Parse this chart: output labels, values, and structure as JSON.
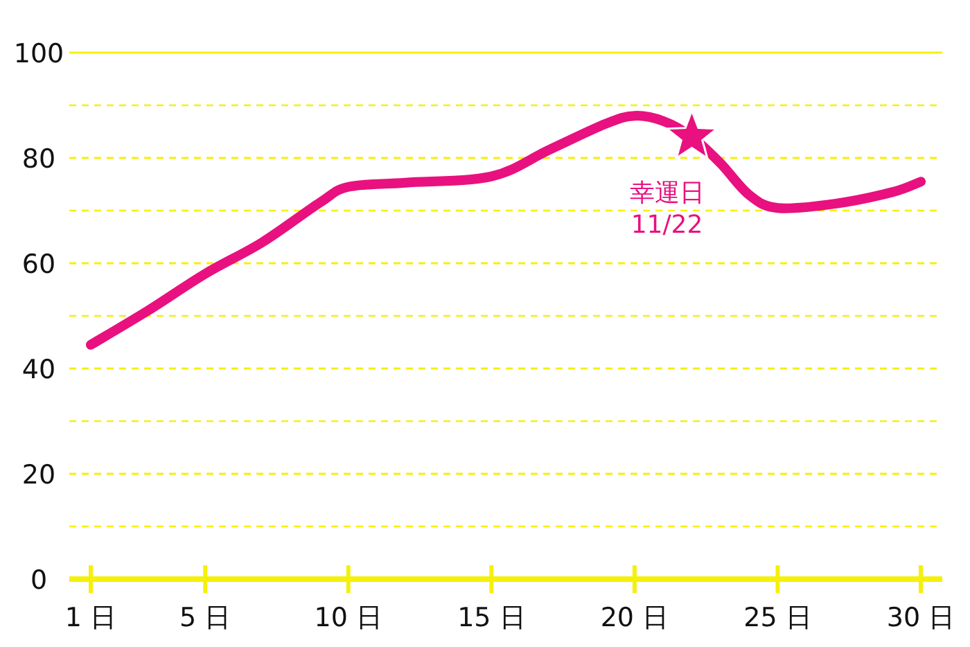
{
  "chart_data": {
    "type": "line",
    "x": [
      1,
      3,
      5,
      7,
      9,
      10,
      12,
      15,
      17,
      19,
      20,
      21,
      22,
      23,
      24,
      25,
      27,
      29,
      30
    ],
    "series": [
      {
        "color": "#e8117f",
        "values": [
          44.5,
          51,
          58,
          64,
          71.5,
          74.5,
          75.3,
          76.5,
          81.5,
          86.5,
          88,
          87,
          84,
          79,
          73,
          70.5,
          71.3,
          73.5,
          75.5
        ]
      }
    ],
    "xlim": [
      0.25,
      30.75
    ],
    "ylim": [
      0,
      100
    ],
    "xticks": [
      {
        "value": 1,
        "label": "1 日"
      },
      {
        "value": 5,
        "label": "5 日"
      },
      {
        "value": 10,
        "label": "10 日"
      },
      {
        "value": 15,
        "label": "15 日"
      },
      {
        "value": 20,
        "label": "20 日"
      },
      {
        "value": 25,
        "label": "25 日"
      },
      {
        "value": 30,
        "label": "30 日"
      }
    ],
    "yticks": [
      0,
      {
        "value": 10,
        "label": null
      },
      20,
      {
        "value": 30,
        "label": null
      },
      40,
      {
        "value": 50,
        "label": null
      },
      60,
      {
        "value": 70,
        "label": null
      },
      80,
      {
        "value": 90,
        "label": null
      },
      100
    ],
    "grid": "y",
    "line_style": "solid",
    "annotations": [
      {
        "text": "幸運日\n11/22",
        "x": 22,
        "y": 84
      }
    ]
  }
}
